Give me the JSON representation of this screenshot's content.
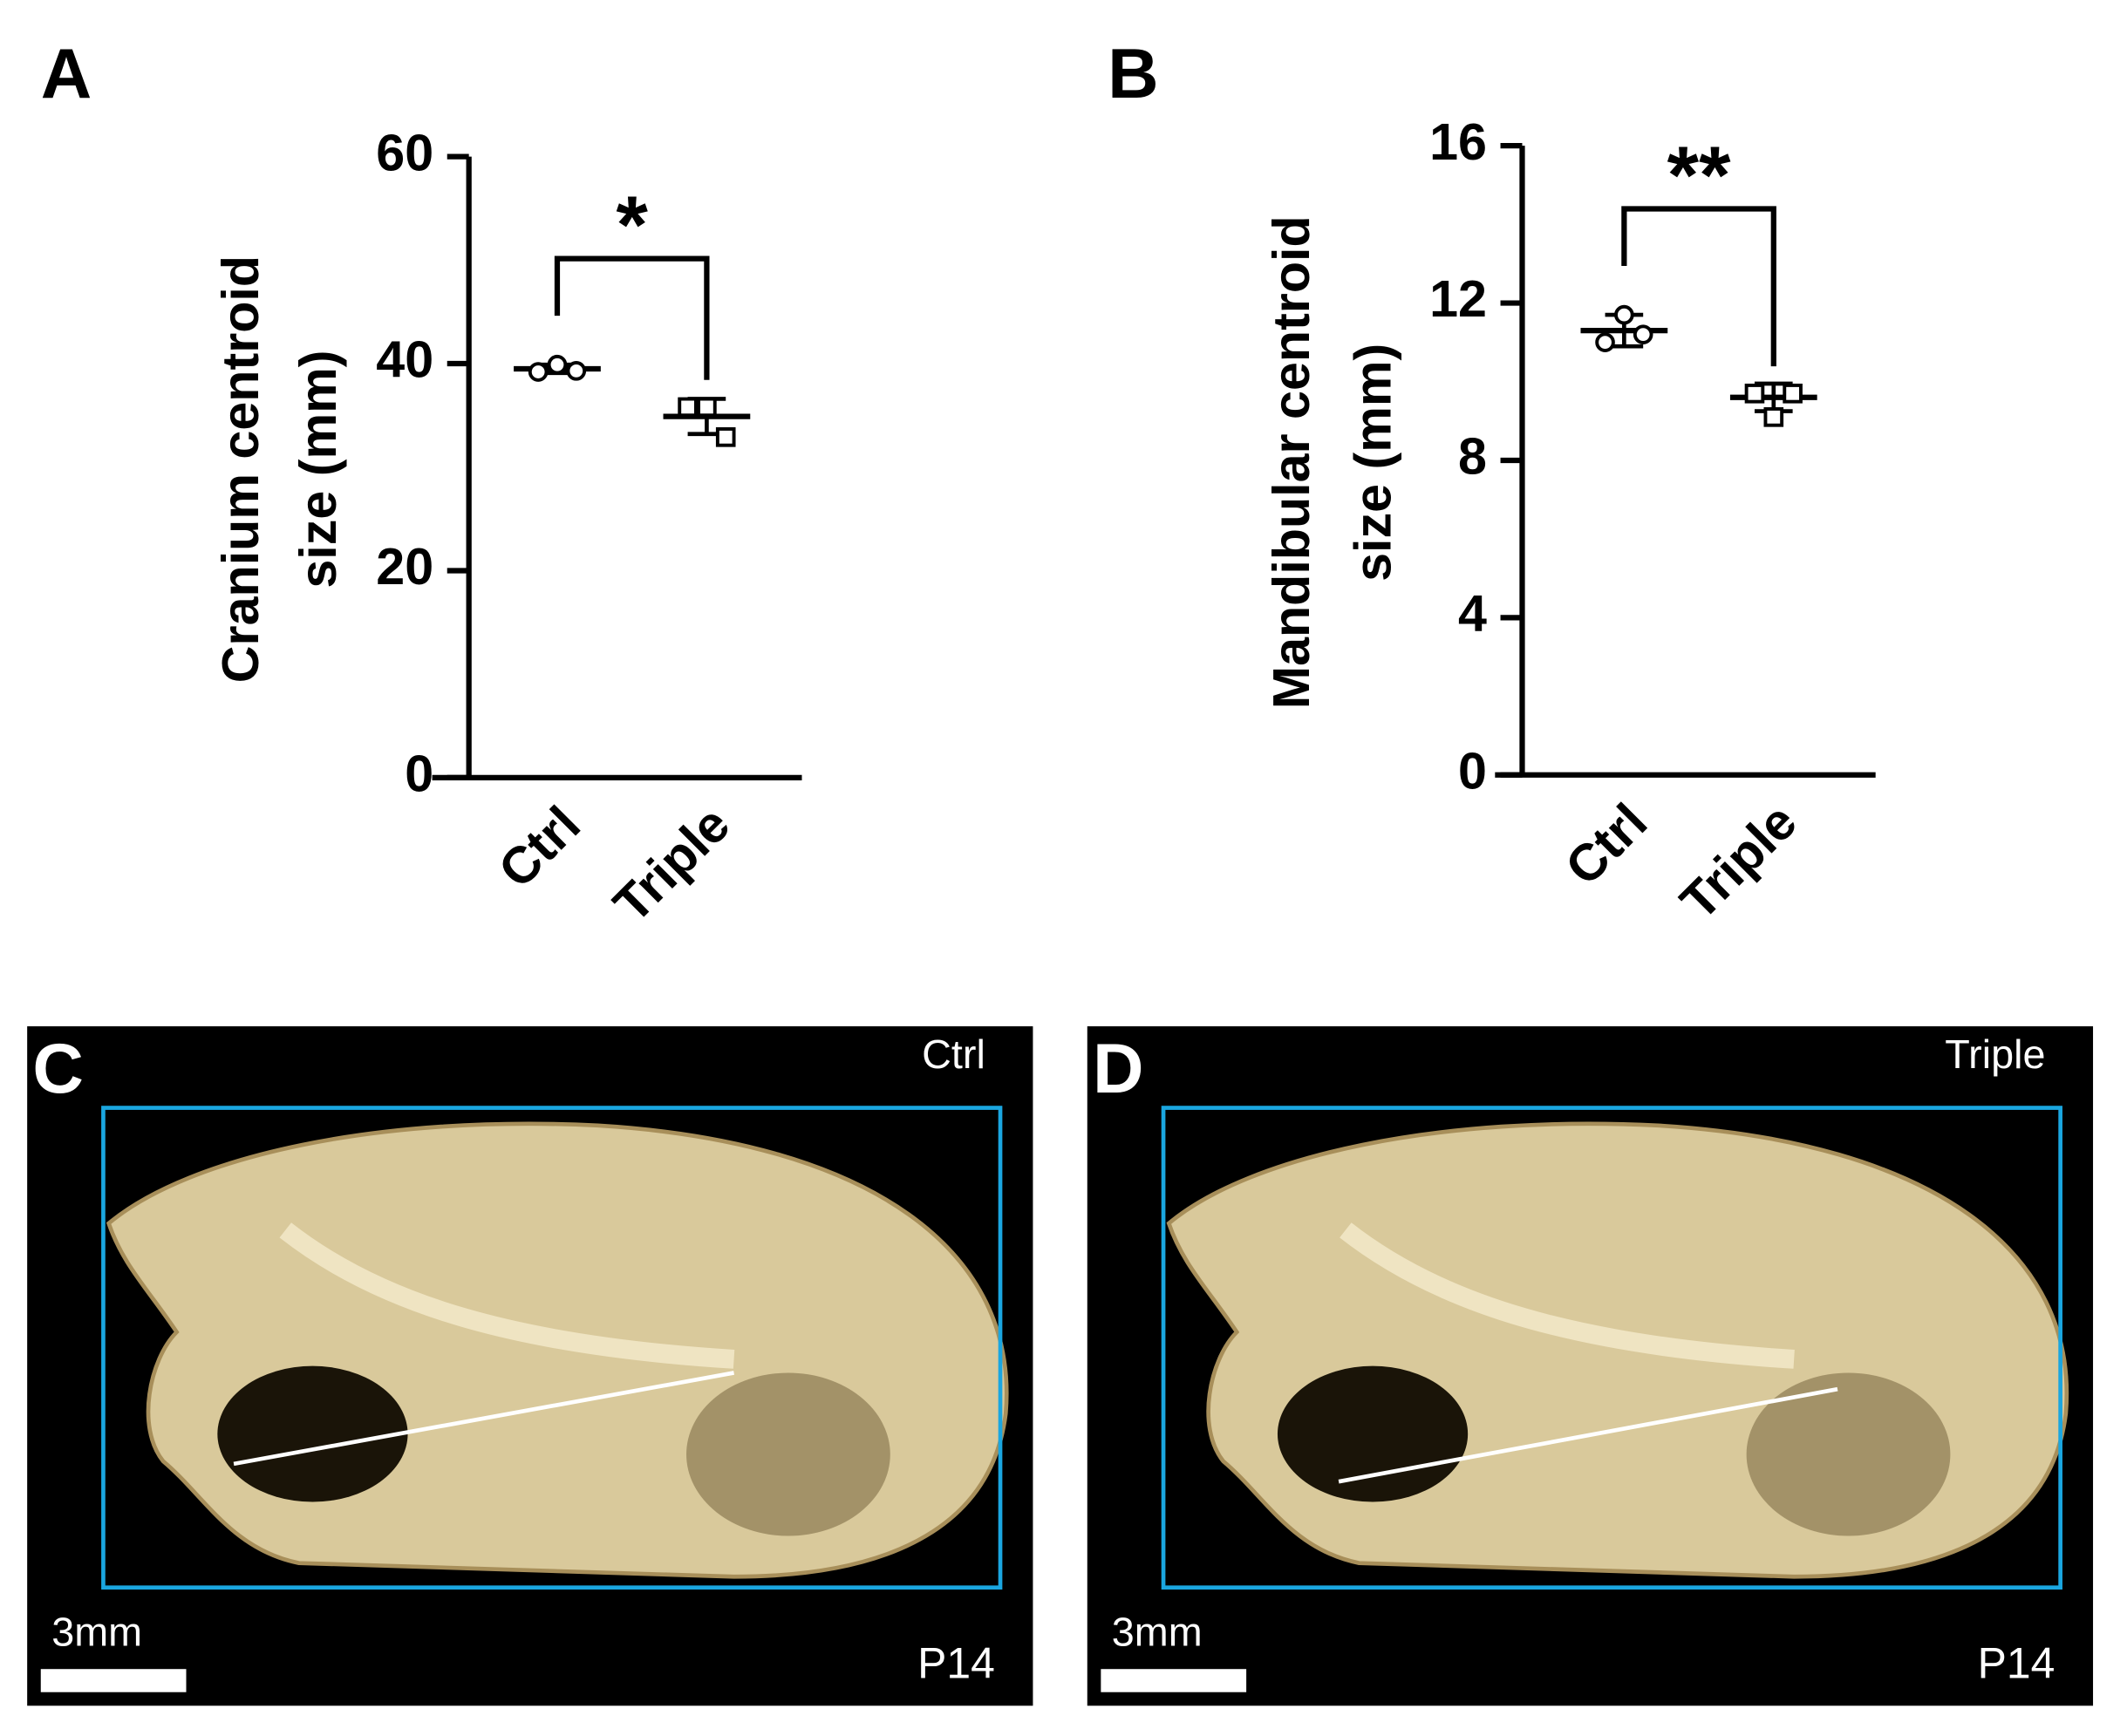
{
  "chart_data": [
    {
      "type": "dotplot",
      "panel": "A",
      "ylabel": [
        "Cranium centroid",
        "size (mm)"
      ],
      "categories": [
        "Ctrl",
        "Triple"
      ],
      "markers": [
        "circle",
        "square"
      ],
      "color": "#000000",
      "points": [
        [
          39.2,
          39.9,
          39.3
        ],
        [
          35.8,
          35.8,
          32.9
        ]
      ],
      "means": [
        39.5,
        34.9
      ],
      "sd": [
        0.4,
        1.7
      ],
      "ylim": [
        0,
        60
      ],
      "yticks": [
        0,
        20,
        40,
        60
      ],
      "significance": "*"
    },
    {
      "type": "dotplot",
      "panel": "B",
      "ylabel": [
        "Mandibular centroid",
        "size (mm)"
      ],
      "categories": [
        "Ctrl",
        "Triple"
      ],
      "markers": [
        "circle",
        "square"
      ],
      "color": "#000000",
      "points": [
        [
          11.0,
          11.7,
          11.2
        ],
        [
          9.7,
          9.1,
          9.7
        ]
      ],
      "means": [
        11.3,
        9.6
      ],
      "sd": [
        0.4,
        0.35
      ],
      "ylim": [
        0,
        16
      ],
      "yticks": [
        0,
        4,
        8,
        12,
        16
      ],
      "significance": "**"
    }
  ],
  "images": [
    {
      "panel": "C",
      "condition": "Ctrl",
      "scale_bar": "3mm",
      "age": "P14"
    },
    {
      "panel": "D",
      "condition": "Triple",
      "scale_bar": "3mm",
      "age": "P14"
    }
  ]
}
